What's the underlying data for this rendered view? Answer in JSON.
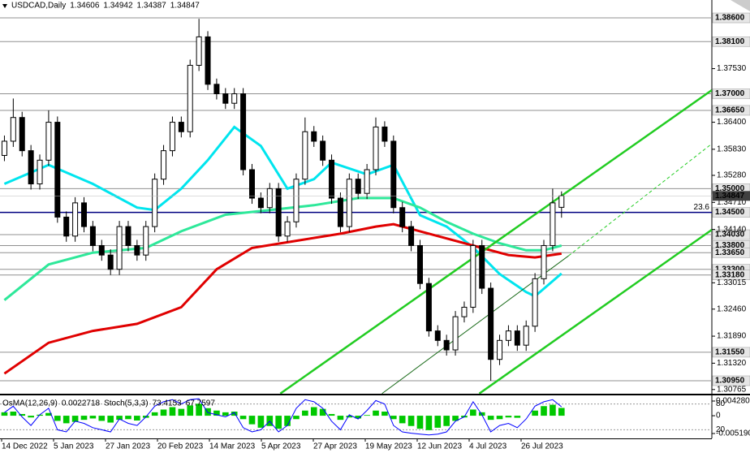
{
  "chart_data": [
    {
      "type": "candlestick",
      "symbol": "USDCAD,Daily",
      "header_values": [
        1.34606,
        1.34942,
        1.34387,
        1.34847
      ],
      "xlim": [
        -0.5,
        80
      ],
      "ylim": [
        1.30676,
        1.38977
      ],
      "up_color": "#ffffff",
      "down_color": "#000000",
      "open": [
        1.357,
        1.36,
        1.365,
        1.358,
        1.351,
        1.356,
        1.364,
        1.344,
        1.34,
        1.347,
        1.342,
        1.338,
        1.336,
        1.333,
        1.342,
        1.338,
        1.336,
        1.342,
        1.352,
        1.358,
        1.364,
        1.362,
        1.376,
        1.382,
        1.372,
        1.37,
        1.368,
        1.37,
        1.354,
        1.348,
        1.346,
        1.35,
        1.34,
        1.343,
        1.352,
        1.362,
        1.36,
        1.356,
        1.348,
        1.342,
        1.352,
        1.349,
        1.354,
        1.363,
        1.36,
        1.346,
        1.342,
        1.338,
        1.33,
        1.32,
        1.318,
        1.316,
        1.323,
        1.325,
        1.338,
        1.329,
        1.314,
        1.318,
        1.32,
        1.317,
        1.321,
        1.331,
        1.338,
        1.34606
      ],
      "high": [
        1.3612,
        1.369,
        1.3662,
        1.3592,
        1.3572,
        1.3665,
        1.3652,
        1.3452,
        1.3482,
        1.3482,
        1.3432,
        1.3392,
        1.3372,
        1.3432,
        1.3432,
        1.3392,
        1.3432,
        1.3532,
        1.3592,
        1.3652,
        1.3652,
        1.3772,
        1.3858,
        1.3832,
        1.3732,
        1.3712,
        1.3712,
        1.3712,
        1.3552,
        1.3492,
        1.3512,
        1.3512,
        1.3442,
        1.3532,
        1.365,
        1.3632,
        1.3612,
        1.3572,
        1.3492,
        1.3532,
        1.3532,
        1.3552,
        1.365,
        1.3642,
        1.3612,
        1.3472,
        1.3432,
        1.3392,
        1.3312,
        1.3212,
        1.3192,
        1.3242,
        1.3262,
        1.3392,
        1.3392,
        1.3302,
        1.3192,
        1.3212,
        1.3212,
        1.3222,
        1.3322,
        1.3392,
        1.35,
        1.34942
      ],
      "low": [
        1.3558,
        1.3588,
        1.3568,
        1.3498,
        1.3498,
        1.3548,
        1.3428,
        1.3388,
        1.3388,
        1.3408,
        1.3368,
        1.3348,
        1.3318,
        1.3318,
        1.3368,
        1.3348,
        1.3348,
        1.3408,
        1.3508,
        1.3568,
        1.3608,
        1.3608,
        1.3748,
        1.3708,
        1.3688,
        1.3668,
        1.3668,
        1.3528,
        1.3468,
        1.3448,
        1.3448,
        1.3388,
        1.3388,
        1.3418,
        1.3508,
        1.3588,
        1.3548,
        1.3468,
        1.3408,
        1.3408,
        1.3478,
        1.3478,
        1.3528,
        1.3588,
        1.3448,
        1.3408,
        1.3368,
        1.3288,
        1.3188,
        1.3168,
        1.3148,
        1.3148,
        1.3218,
        1.3238,
        1.3278,
        1.3095,
        1.3128,
        1.3168,
        1.3158,
        1.3158,
        1.3198,
        1.3298,
        1.3368,
        1.34387
      ],
      "close": [
        1.36,
        1.365,
        1.358,
        1.351,
        1.356,
        1.364,
        1.344,
        1.34,
        1.347,
        1.342,
        1.338,
        1.336,
        1.333,
        1.342,
        1.338,
        1.336,
        1.342,
        1.352,
        1.358,
        1.364,
        1.362,
        1.376,
        1.382,
        1.372,
        1.37,
        1.368,
        1.37,
        1.354,
        1.348,
        1.346,
        1.35,
        1.34,
        1.343,
        1.352,
        1.362,
        1.36,
        1.356,
        1.348,
        1.342,
        1.352,
        1.349,
        1.354,
        1.363,
        1.36,
        1.346,
        1.342,
        1.338,
        1.33,
        1.32,
        1.318,
        1.316,
        1.323,
        1.325,
        1.338,
        1.329,
        1.314,
        1.318,
        1.32,
        1.317,
        1.321,
        1.331,
        1.338,
        1.347,
        1.34847
      ],
      "moving_averages": [
        {
          "color": "#00e5ee",
          "x": [
            0,
            5,
            10,
            15,
            17,
            20,
            23,
            26,
            29,
            32,
            35,
            37,
            41,
            44,
            47,
            50,
            53,
            56,
            59,
            60,
            63
          ],
          "values": [
            1.351,
            1.355,
            1.351,
            1.346,
            1.3455,
            1.35,
            1.356,
            1.363,
            1.359,
            1.35,
            1.352,
            1.3555,
            1.353,
            1.355,
            1.3444,
            1.342,
            1.3376,
            1.332,
            1.3282,
            1.3273,
            1.3321
          ]
        },
        {
          "color": "#2ee89a",
          "x": [
            0,
            5,
            10,
            16,
            20,
            25,
            30,
            35,
            40,
            44,
            47,
            50,
            53,
            56,
            59,
            61,
            63
          ],
          "values": [
            1.3265,
            1.334,
            1.3365,
            1.3375,
            1.341,
            1.3445,
            1.3455,
            1.3465,
            1.348,
            1.348,
            1.346,
            1.343,
            1.3405,
            1.3385,
            1.337,
            1.337,
            1.338
          ]
        },
        {
          "color": "#e00000",
          "x": [
            0,
            5,
            10,
            15,
            20,
            24,
            28,
            33,
            38,
            42,
            44,
            47,
            50,
            53,
            57,
            60,
            63
          ],
          "values": [
            1.311,
            1.3175,
            1.32,
            1.3215,
            1.325,
            1.333,
            1.3375,
            1.339,
            1.3405,
            1.342,
            1.3425,
            1.341,
            1.3395,
            1.338,
            1.336,
            1.3355,
            1.3363
          ]
        }
      ],
      "trendlines": [
        {
          "color": "#22cc22",
          "style": "thick",
          "x": [
            31.2,
            80
          ],
          "values": [
            1.3068,
            1.37077
          ]
        },
        {
          "color": "#22cc22",
          "style": "thick",
          "x": [
            53.7,
            80
          ],
          "values": [
            1.3068,
            1.34133
          ]
        },
        {
          "color": "#1a6b1a",
          "style": "thin",
          "x": [
            42.7,
            63.8
          ],
          "values": [
            1.3068,
            1.33585
          ]
        },
        {
          "color": "#22cc22",
          "style": "dashed",
          "x": [
            63.8,
            80
          ],
          "values": [
            1.33585,
            1.35947
          ]
        }
      ],
      "levels": [
        {
          "value": 1.386,
          "label": "1.38600",
          "color": "#909090"
        },
        {
          "value": 1.381,
          "label": "1.38100",
          "color": "#909090"
        },
        {
          "value": 1.37,
          "label": "1.37000",
          "color": "#909090"
        },
        {
          "value": 1.3665,
          "label": "1.36650",
          "color": "#909090"
        },
        {
          "value": 1.35,
          "label": "1.35000",
          "color": "#909090"
        },
        {
          "value": 1.345,
          "label": "1.34500",
          "color": "#000080",
          "fib": "23.6"
        },
        {
          "value": 1.3403,
          "label": "1.34030",
          "color": "#909090"
        },
        {
          "value": 1.338,
          "label": "1.33800",
          "color": "#909090"
        },
        {
          "value": 1.3365,
          "label": "1.33650",
          "color": "#909090"
        },
        {
          "value": 1.333,
          "label": "1.33300",
          "color": "#909090"
        },
        {
          "value": 1.3318,
          "label": "1.33180",
          "color": "#909090"
        },
        {
          "value": 1.3155,
          "label": "1.31550",
          "color": "#909090"
        },
        {
          "value": 1.3095,
          "label": "1.30950",
          "color": "#909090"
        }
      ],
      "last_price": 1.34847,
      "yticks": [
        {
          "value": 1.3753,
          "label": "1.37530"
        },
        {
          "value": 1.364,
          "label": "1.36400"
        },
        {
          "value": 1.3583,
          "label": "1.35830"
        },
        {
          "value": 1.3528,
          "label": "1.35280"
        },
        {
          "value": 1.3471,
          "label": "1.34710"
        },
        {
          "value": 1.3414,
          "label": "1.34140"
        },
        1.33015,
        {
          "value": 1.3246,
          "label": "1.32460"
        },
        {
          "value": 1.3189,
          "label": "1.31890"
        },
        {
          "value": 1.3132,
          "label": "1.31320"
        },
        1.30765
      ],
      "date_labels": [
        "14 Dec 2022",
        "5 Jan 2023",
        "27 Jan 2023",
        "20 Feb 2023",
        "14 Mar 2023",
        "5 Apr 2023",
        "27 Apr 2023",
        "19 May 2023",
        "12 Jun 2023",
        "4 Jul 2023",
        "26 Jul 2023"
      ]
    },
    {
      "type": "osma",
      "title": "OsMA(12,26,9)",
      "osma_value": 0.0022718,
      "stoch_title": "Stoch(5,3,3)",
      "stoch_header": [
        73.4153,
        67.7597
      ],
      "xlim": [
        -0.5,
        80
      ],
      "ylim": [
        -0.00661,
        0.005937
      ],
      "yticks": [
        {
          "value": 0.00428,
          "label": "0.004280"
        },
        0,
        {
          "value": -0.00519,
          "label": "-0.005190"
        }
      ],
      "color": "#00c800",
      "values": [
        0.001,
        0.0012,
        0.0005,
        -0.0005,
        0.0003,
        0.0008,
        -0.0015,
        -0.0022,
        -0.0018,
        -0.0012,
        -0.0008,
        -0.0015,
        -0.002,
        -0.0012,
        -0.001,
        -0.0014,
        -0.0006,
        0.001,
        0.0018,
        0.0025,
        0.002,
        0.003,
        0.0035,
        0.0022,
        0.0015,
        0.001,
        0.0012,
        -0.001,
        -0.0025,
        -0.0035,
        -0.003,
        -0.0038,
        -0.003,
        -0.001,
        0.0015,
        0.0025,
        0.002,
        0.0005,
        -0.0012,
        -0.0005,
        -0.0008,
        0.0002,
        0.0015,
        0.0012,
        -0.001,
        -0.0022,
        -0.003,
        -0.0038,
        -0.0042,
        -0.0035,
        -0.003,
        -0.0015,
        -0.0005,
        0.0018,
        0.001,
        -0.0012,
        -0.001,
        -0.0005,
        -0.0006,
        0,
        0.0015,
        0.0028,
        0.0032,
        0.0022718
      ],
      "stoch_color": "#0000ff",
      "stoch_values": [
        60,
        75,
        50,
        30,
        55,
        70,
        20,
        15,
        40,
        35,
        25,
        20,
        15,
        45,
        35,
        30,
        50,
        75,
        85,
        90,
        80,
        90,
        92,
        60,
        55,
        50,
        60,
        25,
        15,
        20,
        40,
        15,
        30,
        70,
        90,
        85,
        70,
        40,
        20,
        55,
        45,
        65,
        88,
        80,
        30,
        15,
        12,
        10,
        8,
        10,
        15,
        40,
        50,
        85,
        55,
        15,
        30,
        35,
        25,
        45,
        75,
        85,
        90,
        73.4153
      ],
      "y2lim": [
        0,
        100
      ],
      "y2ticks": [
        80,
        20
      ]
    }
  ]
}
